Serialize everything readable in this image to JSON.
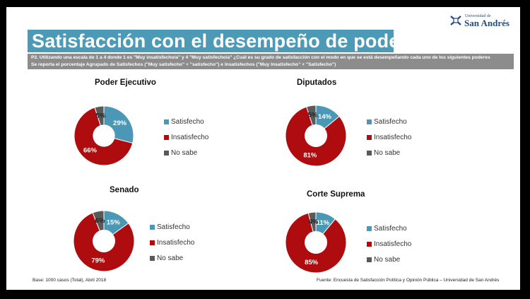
{
  "title": "Satisfacción con el desempeño de poderes",
  "logo": {
    "small": "Universidad de",
    "big": "San Andrés"
  },
  "question": {
    "line1": "P2.  Utilizando una escala de 1 a 4 donde 1 es \"Muy insatisfecho/a\" y 4 \"Muy satisfecho/a\" ¿Cuál es su grado de satisfacción con el modo en que se está desempeñando cada uno de los siguientes poderes",
    "line2": "Se reporta el porcentaje Agrupado de Satisfechos (\"Muy satisfecho\" + \"satisfecho\") e Insatisfechos (\"Muy Insatisfecho\" + \"Satisfecho\")"
  },
  "colors": {
    "satisfecho": "#4a98b5",
    "insatisfecho": "#ae0c0e",
    "no_sabe": "#595959"
  },
  "legend_labels": {
    "satisfecho": "Satisfecho",
    "insatisfecho": "Insatisfecho",
    "no_sabe": "No sabe"
  },
  "chart_data": [
    {
      "type": "pie",
      "title": "Poder Ejecutivo",
      "labels": [
        "Satisfecho",
        "Insatisfecho",
        "No sabe"
      ],
      "values": [
        29,
        66,
        5
      ],
      "data_labels": [
        "29%",
        "66%",
        "5%"
      ]
    },
    {
      "type": "pie",
      "title": "Diputados",
      "labels": [
        "Satisfecho",
        "Insatisfecho",
        "No sabe"
      ],
      "values": [
        14,
        81,
        5
      ],
      "data_labels": [
        "14%",
        "81%",
        "5%"
      ]
    },
    {
      "type": "pie",
      "title": "Senado",
      "labels": [
        "Satisfecho",
        "Insatisfecho",
        "No sabe"
      ],
      "values": [
        15,
        79,
        6
      ],
      "data_labels": [
        "15%",
        "79%",
        "6%"
      ]
    },
    {
      "type": "pie",
      "title": "Corte Suprema",
      "labels": [
        "Satisfecho",
        "Insatisfecho",
        "No sabe"
      ],
      "values": [
        11,
        85,
        4
      ],
      "data_labels": [
        "11%",
        "85%",
        "4%"
      ]
    }
  ],
  "footer": {
    "base": "Base: 1000 casos (Total), Abril 2018",
    "source": "Fuente: Encuesta de Satisfacción Política y Opinión Pública – Universidad de San Andrés"
  }
}
